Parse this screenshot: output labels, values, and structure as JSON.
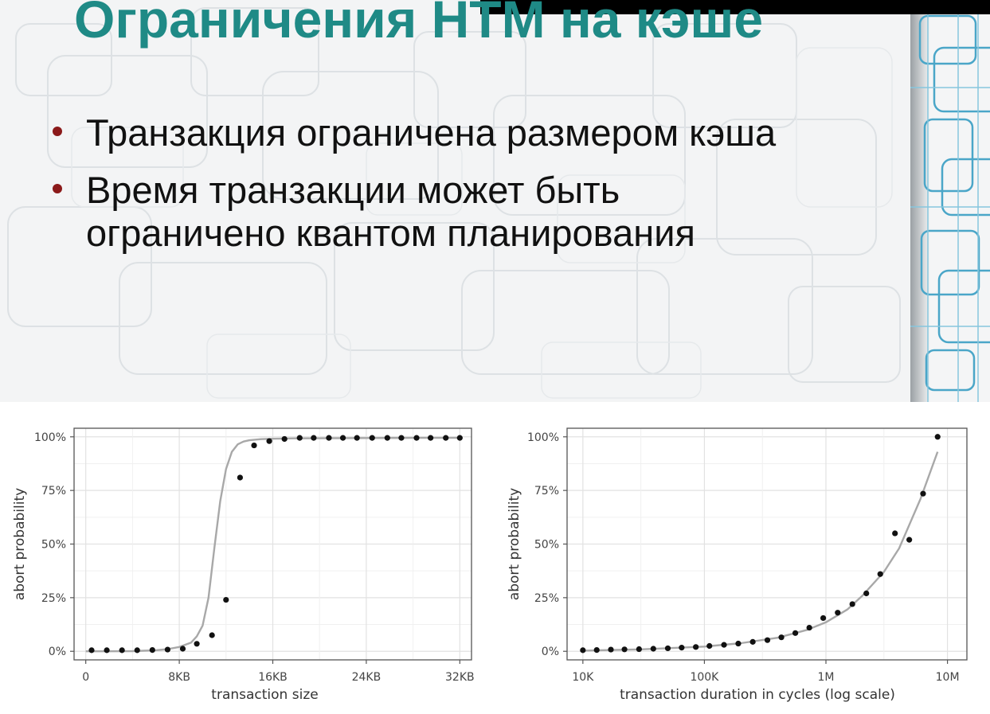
{
  "slide": {
    "title": "Ограничения HTM на кэше",
    "bullets": [
      {
        "lines": [
          "Транзакция ограничена размером кэша"
        ]
      },
      {
        "lines": [
          "Время транзакции может быть",
          "ограничено квантом планирования"
        ]
      }
    ],
    "colors": {
      "title": "#1f8a86",
      "bullet_marker": "#8b1a1a",
      "top_bar": "#000000",
      "deco_lines": "#4aa6c8"
    }
  },
  "chart_data": [
    {
      "type": "scatter",
      "xlabel": "transaction size",
      "ylabel": "abort probability",
      "xlim": [
        -1,
        33
      ],
      "ylim": [
        -4,
        104
      ],
      "x_ticks": [
        0,
        8,
        16,
        24,
        32
      ],
      "x_tick_labels": [
        "0",
        "8KB",
        "16KB",
        "24KB",
        "32KB"
      ],
      "y_ticks": [
        0,
        25,
        50,
        75,
        100
      ],
      "y_tick_labels": [
        "0%",
        "25%",
        "50%",
        "75%",
        "100%"
      ],
      "grid": true,
      "points": {
        "x": [
          0.5,
          1.8,
          3.1,
          4.4,
          5.7,
          7.0,
          8.3,
          9.5,
          10.8,
          12.0,
          13.2,
          14.4,
          15.7,
          17.0,
          18.3,
          19.5,
          20.8,
          22.0,
          23.2,
          24.5,
          25.8,
          27.0,
          28.3,
          29.5,
          30.8,
          32.0
        ],
        "y": [
          0.5,
          0.5,
          0.5,
          0.5,
          0.6,
          0.8,
          1.2,
          3.5,
          7.5,
          24,
          81,
          96,
          98,
          99,
          99.5,
          99.5,
          99.5,
          99.5,
          99.5,
          99.5,
          99.5,
          99.5,
          99.5,
          99.5,
          99.5,
          99.5
        ]
      },
      "fit": {
        "x": [
          0,
          2,
          4,
          6,
          7,
          8,
          9,
          9.5,
          10,
          10.5,
          11,
          11.5,
          12,
          12.5,
          13,
          13.5,
          14,
          15,
          16,
          18,
          22,
          28,
          32
        ],
        "y": [
          0,
          0,
          0.1,
          0.5,
          1,
          2,
          4,
          7,
          12,
          25,
          48,
          70,
          85,
          93,
          96.5,
          97.8,
          98.4,
          98.9,
          99.1,
          99.3,
          99.4,
          99.5,
          99.5
        ]
      }
    },
    {
      "type": "scatter",
      "xlabel": "transaction duration in cycles (log scale)",
      "ylabel": "abort probability",
      "x_log": true,
      "xlim_log10": [
        3.87,
        7.16
      ],
      "ylim": [
        -4,
        104
      ],
      "x_ticks": [
        10000,
        100000,
        1000000,
        10000000
      ],
      "x_tick_labels": [
        "10K",
        "100K",
        "1M",
        "10M"
      ],
      "y_ticks": [
        0,
        25,
        50,
        75,
        100
      ],
      "y_tick_labels": [
        "0%",
        "25%",
        "50%",
        "75%",
        "100%"
      ],
      "grid": true,
      "points": {
        "x": [
          10000,
          13000,
          17000,
          22000,
          29000,
          38000,
          50000,
          65000,
          85000,
          110000,
          145000,
          190000,
          250000,
          330000,
          430000,
          560000,
          730000,
          950000,
          1250000,
          1650000,
          2150000,
          2800000,
          3700000,
          4850000,
          6300000,
          8300000
        ],
        "y": [
          0.5,
          0.6,
          0.8,
          0.9,
          1.0,
          1.2,
          1.4,
          1.7,
          2.0,
          2.5,
          3.0,
          3.6,
          4.4,
          5.2,
          6.5,
          8.5,
          11,
          15.5,
          18,
          22,
          27,
          36,
          55,
          52,
          73.5,
          100
        ]
      },
      "fit": {
        "x": [
          10000,
          30000,
          100000,
          200000,
          400000,
          700000,
          1000000,
          1500000,
          2000000,
          3000000,
          4000000,
          6000000,
          8300000
        ],
        "y": [
          0.3,
          0.9,
          2.2,
          3.8,
          6.3,
          10,
          13.5,
          19.5,
          26,
          37,
          48,
          71,
          93
        ]
      }
    }
  ]
}
